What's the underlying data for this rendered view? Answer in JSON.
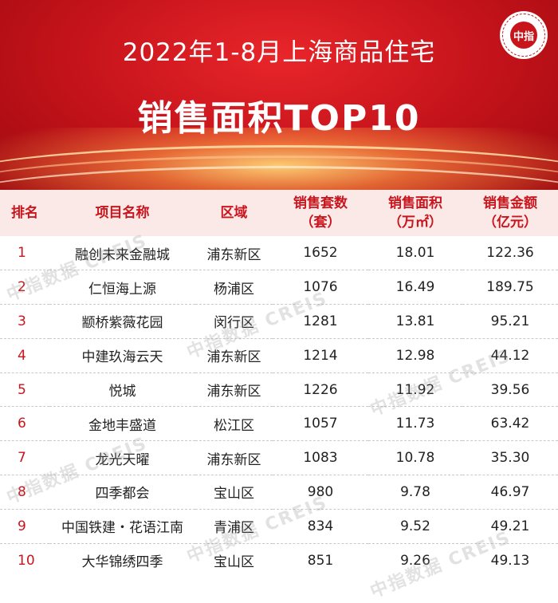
{
  "header": {
    "title_line1": "2022年1-8月上海商品住宅",
    "title_line2": "销售面积TOP10",
    "logo_text": "中指"
  },
  "watermark": "中指数据 CREIS",
  "table": {
    "columns": {
      "rank": "排名",
      "name": "项目名称",
      "district": "区域",
      "units_line1": "销售套数",
      "units_line2": "（套）",
      "area_line1": "销售面积",
      "area_line2": "（万㎡）",
      "amount_line1": "销售金额",
      "amount_line2": "（亿元）"
    },
    "rows": [
      {
        "rank": "1",
        "name": "融创未来金融城",
        "district": "浦东新区",
        "units": "1652",
        "area": "18.01",
        "amount": "122.36"
      },
      {
        "rank": "2",
        "name": "仁恒海上源",
        "district": "杨浦区",
        "units": "1076",
        "area": "16.49",
        "amount": "189.75"
      },
      {
        "rank": "3",
        "name": "颛桥紫薇花园",
        "district": "闵行区",
        "units": "1281",
        "area": "13.81",
        "amount": "95.21"
      },
      {
        "rank": "4",
        "name": "中建玖海云天",
        "district": "浦东新区",
        "units": "1214",
        "area": "12.98",
        "amount": "44.12"
      },
      {
        "rank": "5",
        "name": "悦城",
        "district": "浦东新区",
        "units": "1226",
        "area": "11.92",
        "amount": "39.56"
      },
      {
        "rank": "6",
        "name": "金地丰盛道",
        "district": "松江区",
        "units": "1057",
        "area": "11.73",
        "amount": "63.42"
      },
      {
        "rank": "7",
        "name": "龙光天曜",
        "district": "浦东新区",
        "units": "1083",
        "area": "10.78",
        "amount": "35.30"
      },
      {
        "rank": "8",
        "name": "四季都会",
        "district": "宝山区",
        "units": "980",
        "area": "9.78",
        "amount": "46.97"
      },
      {
        "rank": "9",
        "name": "中国铁建・花语江南",
        "district": "青浦区",
        "units": "834",
        "area": "9.52",
        "amount": "49.21"
      },
      {
        "rank": "10",
        "name": "大华锦绣四季",
        "district": "宝山区",
        "units": "851",
        "area": "9.26",
        "amount": "49.13"
      }
    ]
  }
}
